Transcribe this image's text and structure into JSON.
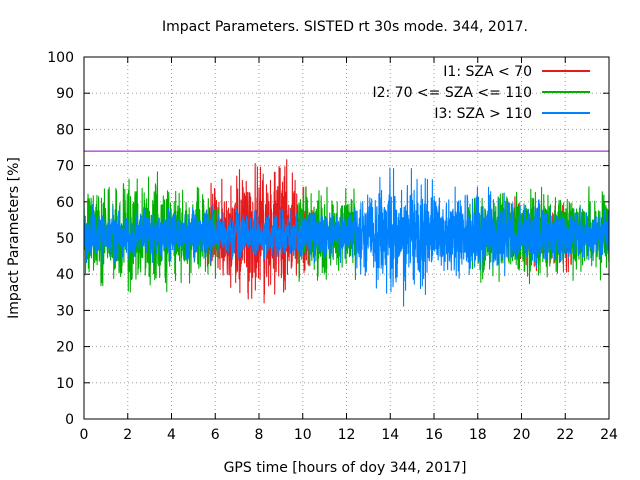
{
  "chart_data": {
    "type": "line",
    "title": "Impact Parameters. SISTED rt 30s mode. 344, 2017.",
    "xlabel": "GPS time [hours of doy 344, 2017]",
    "ylabel": "Impact Parameters [%]",
    "xlim": [
      0,
      24
    ],
    "ylim": [
      0,
      100
    ],
    "xticks": [
      0,
      2,
      4,
      6,
      8,
      10,
      12,
      14,
      16,
      18,
      20,
      22,
      24
    ],
    "yticks": [
      0,
      10,
      20,
      30,
      40,
      50,
      60,
      70,
      80,
      90,
      100
    ],
    "grid": true,
    "legend_position": "top-right",
    "threshold": {
      "value": 74,
      "color": "#9400d3"
    },
    "series": [
      {
        "name": "I1: SZA < 70",
        "color": "#e41a1c",
        "noise_seed": 11,
        "x": [
          0,
          5,
          6,
          7,
          8,
          8.5,
          9,
          9.5,
          10,
          12
        ],
        "center": [
          51,
          51,
          51,
          51,
          51,
          51,
          51,
          51,
          51,
          51
        ],
        "spread": [
          4,
          4,
          6,
          7,
          8,
          9,
          9,
          7,
          5,
          4
        ],
        "notes": "visible mostly 5.5h-10.5h; peaks near 69 at ~8.9h, 66 at ~9.3h, lows ~36 at ~6.9h",
        "segments": [
          [
            5.5,
            10.5
          ],
          [
            19.5,
            22.5
          ]
        ]
      },
      {
        "name": "I2: 70 <= SZA <= 110",
        "color": "#00b000",
        "noise_seed": 7,
        "x": [
          0,
          2,
          3,
          4,
          5,
          6,
          10,
          12,
          14,
          18,
          20,
          22,
          24
        ],
        "center": [
          51,
          51,
          51,
          51,
          51,
          51,
          51,
          51,
          51,
          51,
          51,
          51,
          51
        ],
        "spread": [
          5,
          6,
          7,
          6,
          5,
          5,
          5,
          5,
          4,
          5,
          5,
          5,
          5
        ],
        "notes": "peaks ~68 at ~2.8h, ~66 at ~5.2h; lows ~38 at ~2.1h",
        "segments": [
          [
            0,
            6.2
          ],
          [
            9.8,
            12.5
          ],
          [
            17.5,
            24
          ]
        ]
      },
      {
        "name": "I3: SZA > 110",
        "color": "#0082ff",
        "noise_seed": 3,
        "x": [
          0,
          4,
          8,
          12,
          13,
          14,
          15,
          16,
          18,
          20,
          22,
          24
        ],
        "center": [
          51,
          51,
          51,
          51,
          51,
          51,
          51,
          51,
          51,
          51,
          51,
          51
        ],
        "spread": [
          3,
          3,
          3,
          3,
          5,
          7,
          7,
          6,
          5,
          4,
          3,
          3
        ],
        "notes": "peaks ~68 at ~13.6h, ~64 at ~16.8h; lows ~32 at ~14.1h",
        "segments": [
          [
            0,
            24
          ]
        ]
      }
    ]
  }
}
